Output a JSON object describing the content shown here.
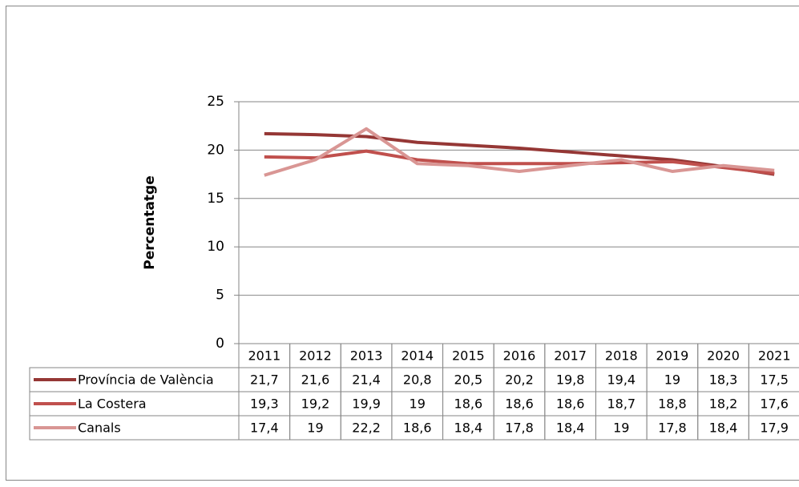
{
  "chart_data": {
    "type": "line",
    "y_label": "Percentatge",
    "categories": [
      "2011",
      "2012",
      "2013",
      "2014",
      "2015",
      "2016",
      "2017",
      "2018",
      "2019",
      "2020",
      "2021"
    ],
    "series": [
      {
        "name": "Província de València",
        "color": "#953735",
        "values": [
          21.7,
          21.6,
          21.4,
          20.8,
          20.5,
          20.2,
          19.8,
          19.4,
          19,
          18.3,
          17.5
        ],
        "value_labels": [
          "21,7",
          "21,6",
          "21,4",
          "20,8",
          "20,5",
          "20,2",
          "19,8",
          "19,4",
          "19",
          "18,3",
          "17,5"
        ]
      },
      {
        "name": "La Costera",
        "color": "#c0504d",
        "values": [
          19.3,
          19.2,
          19.9,
          19,
          18.6,
          18.6,
          18.6,
          18.7,
          18.8,
          18.2,
          17.6
        ],
        "value_labels": [
          "19,3",
          "19,2",
          "19,9",
          "19",
          "18,6",
          "18,6",
          "18,6",
          "18,7",
          "18,8",
          "18,2",
          "17,6"
        ]
      },
      {
        "name": "Canals",
        "color": "#d99694",
        "values": [
          17.4,
          19,
          22.2,
          18.6,
          18.4,
          17.8,
          18.4,
          19,
          17.8,
          18.4,
          17.9
        ],
        "value_labels": [
          "17,4",
          "19",
          "22,2",
          "18,6",
          "18,4",
          "17,8",
          "18,4",
          "19",
          "17,8",
          "18,4",
          "17,9"
        ]
      }
    ],
    "ylim": [
      0,
      25
    ],
    "yticks": [
      0,
      5,
      10,
      15,
      20,
      25
    ],
    "grid": true
  }
}
